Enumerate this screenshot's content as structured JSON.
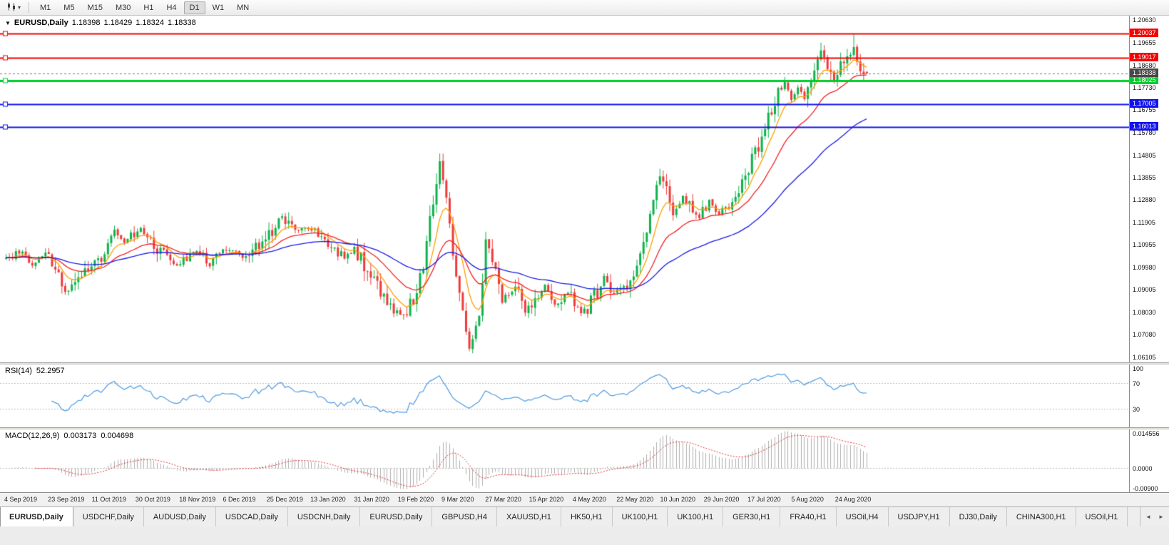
{
  "toolbar": {
    "timeframes": [
      "M1",
      "M5",
      "M15",
      "M30",
      "H1",
      "H4",
      "D1",
      "W1",
      "MN"
    ],
    "active_timeframe": "D1"
  },
  "chart": {
    "title": "EURUSD,Daily",
    "open": "1.18398",
    "high": "1.18429",
    "low": "1.18324",
    "close": "1.18338"
  },
  "price_axis": {
    "ticks": [
      "1.20630",
      "1.19655",
      "1.18680",
      "1.17730",
      "1.16755",
      "1.15780",
      "1.14805",
      "1.13855",
      "1.12880",
      "1.11905",
      "1.10955",
      "1.09980",
      "1.09005",
      "1.08030",
      "1.07080",
      "1.06105"
    ]
  },
  "levels": [
    {
      "price": 1.20037,
      "label": "1.20037",
      "color": "#f40000",
      "width": 2
    },
    {
      "price": 1.19017,
      "label": "1.19017",
      "color": "#f40000",
      "width": 2
    },
    {
      "price": 1.18025,
      "label": "1.18025",
      "color": "#00cd2c",
      "width": 3
    },
    {
      "price": 1.17005,
      "label": "1.17005",
      "color": "#1212ee",
      "width": 2
    },
    {
      "price": 1.16013,
      "label": "1.16013",
      "color": "#1212ee",
      "width": 2
    }
  ],
  "current_price": {
    "value": 1.18338,
    "label": "1.18338",
    "color": "#474747"
  },
  "time_axis": {
    "labels": [
      "4 Sep 2019",
      "23 Sep 2019",
      "11 Oct 2019",
      "30 Oct 2019",
      "18 Nov 2019",
      "6 Dec 2019",
      "25 Dec 2019",
      "13 Jan 2020",
      "31 Jan 2020",
      "19 Feb 2020",
      "9 Mar 2020",
      "27 Mar 2020",
      "15 Apr 2020",
      "4 May 2020",
      "22 May 2020",
      "10 Jun 2020",
      "29 Jun 2020",
      "17 Jul 2020",
      "5 Aug 2020",
      "24 Aug 2020"
    ]
  },
  "indicators": {
    "rsi": {
      "label": "RSI(14)",
      "value": "52.2957",
      "line_color": "#4f9be0",
      "levels": [
        70,
        30
      ],
      "axis_ticks": [
        "100",
        "70",
        "30"
      ]
    },
    "macd": {
      "label": "MACD(12,26,9)",
      "value_main": "0.003173",
      "value_signal": "0.004698",
      "axis_max": 0.014556,
      "axis_min": -0.009,
      "axis_ticks": [
        "0.014556",
        "0.0000",
        "-0.00900"
      ],
      "histogram_color": "#aeaeae",
      "signal_color": "#e23030"
    }
  },
  "tabs": {
    "active_index": 0,
    "items": [
      "EURUSD,Daily",
      "USDCHF,Daily",
      "AUDUSD,Daily",
      "USDCAD,Daily",
      "USDCNH,Daily",
      "EURUSD,Daily",
      "GBPUSD,H4",
      "XAUUSD,H1",
      "HK50,H1",
      "UK100,H1",
      "UK100,H1",
      "GER30,H1",
      "FRA40,H1",
      "USOil,H4",
      "USDJPY,H1",
      "DJ30,Daily",
      "CHINA300,H1",
      "USOil,H1"
    ],
    "scroll_left_icon": "◄",
    "scroll_right_icon": "►"
  },
  "chart_data": {
    "type": "candlestick",
    "symbol": "EURUSD",
    "period": "Daily",
    "bar_count": 263,
    "seed": 11,
    "price_range": {
      "top": 1.2082,
      "bottom": 1.0588
    },
    "colors": {
      "bull": "#0db24a",
      "bear": "#ee3a3a"
    },
    "close_anchors": [
      [
        0,
        1.1035
      ],
      [
        4,
        1.1068
      ],
      [
        8,
        1.1015
      ],
      [
        12,
        1.1058
      ],
      [
        16,
        1.0975
      ],
      [
        19,
        1.0892
      ],
      [
        23,
        1.0958
      ],
      [
        28,
        1.1032
      ],
      [
        33,
        1.1148
      ],
      [
        36,
        1.1105
      ],
      [
        41,
        1.1158
      ],
      [
        46,
        1.1078
      ],
      [
        52,
        1.1012
      ],
      [
        58,
        1.1062
      ],
      [
        62,
        1.1008
      ],
      [
        67,
        1.1075
      ],
      [
        72,
        1.1038
      ],
      [
        78,
        1.1112
      ],
      [
        84,
        1.121
      ],
      [
        88,
        1.1152
      ],
      [
        93,
        1.1168
      ],
      [
        99,
        1.1098
      ],
      [
        103,
        1.1035
      ],
      [
        106,
        1.109
      ],
      [
        110,
        1.0968
      ],
      [
        115,
        1.0872
      ],
      [
        120,
        1.0788
      ],
      [
        124,
        1.0848
      ],
      [
        127,
        1.0992
      ],
      [
        130,
        1.1302
      ],
      [
        132,
        1.1442
      ],
      [
        134,
        1.1282
      ],
      [
        136,
        1.1062
      ],
      [
        139,
        1.0782
      ],
      [
        141,
        1.0658
      ],
      [
        144,
        1.0805
      ],
      [
        146,
        1.1098
      ],
      [
        148,
        1.1032
      ],
      [
        151,
        1.0875
      ],
      [
        155,
        1.0912
      ],
      [
        158,
        1.0795
      ],
      [
        161,
        1.0872
      ],
      [
        164,
        1.0912
      ],
      [
        167,
        1.0835
      ],
      [
        171,
        1.0898
      ],
      [
        175,
        1.0795
      ],
      [
        178,
        1.0842
      ],
      [
        182,
        1.0952
      ],
      [
        185,
        1.0892
      ],
      [
        188,
        1.0908
      ],
      [
        191,
        1.0982
      ],
      [
        194,
        1.1112
      ],
      [
        197,
        1.1292
      ],
      [
        199,
        1.1388
      ],
      [
        201,
        1.1332
      ],
      [
        203,
        1.1232
      ],
      [
        206,
        1.1302
      ],
      [
        209,
        1.1248
      ],
      [
        211,
        1.1222
      ],
      [
        214,
        1.1282
      ],
      [
        217,
        1.1232
      ],
      [
        220,
        1.1272
      ],
      [
        223,
        1.1332
      ],
      [
        226,
        1.1422
      ],
      [
        229,
        1.1522
      ],
      [
        232,
        1.1652
      ],
      [
        235,
        1.1752
      ],
      [
        237,
        1.1782
      ],
      [
        239,
        1.1722
      ],
      [
        241,
        1.1772
      ],
      [
        243,
        1.1722
      ],
      [
        245,
        1.1792
      ],
      [
        248,
        1.1932
      ],
      [
        250,
        1.1842
      ],
      [
        252,
        1.1792
      ],
      [
        254,
        1.1852
      ],
      [
        256,
        1.1882
      ],
      [
        258,
        1.1942
      ],
      [
        260,
        1.1862
      ],
      [
        262,
        1.18338
      ]
    ],
    "overrides": [
      {
        "i": 132,
        "h": 1.1488
      },
      {
        "i": 141,
        "l": 1.0636
      },
      {
        "i": 199,
        "h": 1.1422
      },
      {
        "i": 248,
        "h": 1.1966
      },
      {
        "i": 258,
        "h": 1.2005
      }
    ],
    "last_bar": {
      "o": 1.18398,
      "h": 1.18429,
      "l": 1.18324,
      "c": 1.18338
    },
    "moving_averages": [
      {
        "name": "ma-fast",
        "period": 8,
        "color": "#ff9f00"
      },
      {
        "name": "ma-medium",
        "period": 21,
        "color": "#f32020"
      },
      {
        "name": "ma-slow",
        "period": 55,
        "color": "#1a1ae6"
      }
    ]
  }
}
